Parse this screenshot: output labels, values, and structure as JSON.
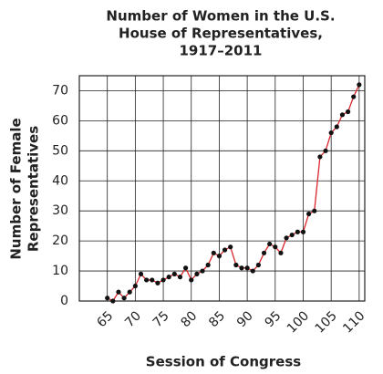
{
  "chart_data": {
    "type": "line",
    "title": [
      "Number of Women in the U.S.",
      "House of Representatives,",
      "1917–2011"
    ],
    "x_label": "Session of Congress",
    "y_label": [
      "Number of Female",
      "Representatives"
    ],
    "x": [
      65,
      66,
      67,
      68,
      69,
      70,
      71,
      72,
      73,
      74,
      75,
      76,
      77,
      78,
      79,
      80,
      81,
      82,
      83,
      84,
      85,
      86,
      87,
      88,
      89,
      90,
      91,
      92,
      93,
      94,
      95,
      96,
      97,
      98,
      99,
      100,
      101,
      102,
      103,
      104,
      105,
      106,
      107,
      108,
      109,
      110
    ],
    "series": [
      {
        "color": "#d9262c",
        "marker_color": "#111111",
        "values": [
          1,
          0,
          3,
          1,
          3,
          5,
          9,
          7,
          7,
          6,
          7,
          8,
          9,
          8,
          11,
          7,
          9,
          10,
          12,
          16,
          15,
          17,
          18,
          12,
          11,
          11,
          10,
          12,
          16,
          19,
          18,
          16,
          21,
          22,
          23,
          23,
          29,
          30,
          48,
          50,
          56,
          58,
          62,
          63,
          68,
          72
        ]
      }
    ],
    "xlim": [
      60,
      111
    ],
    "xticks": [
      65,
      70,
      75,
      80,
      85,
      90,
      95,
      100,
      105,
      110
    ],
    "ylim": [
      0,
      75
    ],
    "yticks": [
      0,
      10,
      20,
      30,
      40,
      50,
      60,
      70
    ],
    "grid": true
  }
}
